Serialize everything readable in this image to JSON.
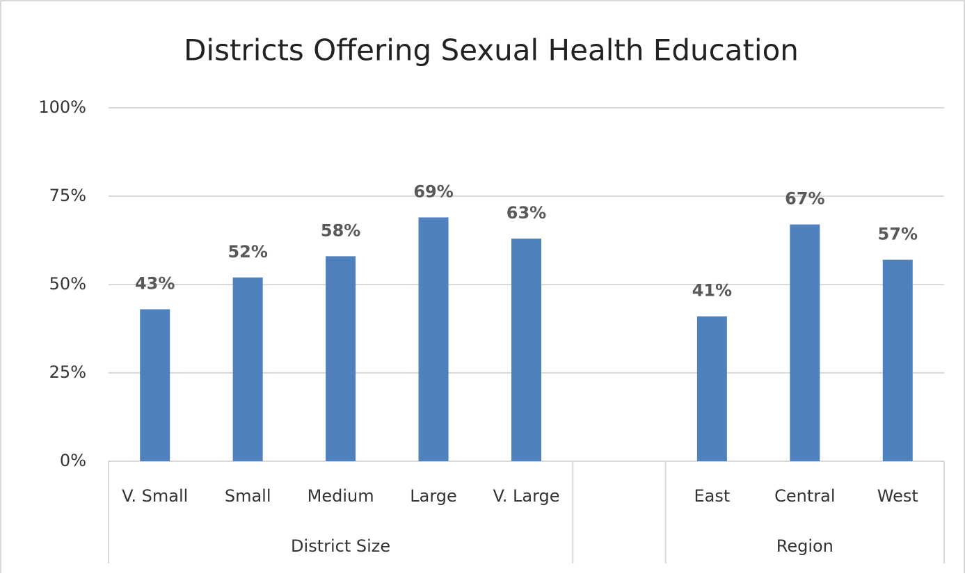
{
  "chart_data": {
    "type": "bar",
    "title": "Districts Offering Sexual Health Education",
    "categories": [
      "V. Small",
      "Small",
      "Medium",
      "Large",
      "V. Large",
      null,
      "East",
      "Central",
      "West"
    ],
    "values": [
      43,
      52,
      58,
      69,
      63,
      null,
      41,
      67,
      57
    ],
    "value_labels": [
      "43%",
      "52%",
      "58%",
      "69%",
      "63%",
      null,
      "41%",
      "67%",
      "57%"
    ],
    "groups": [
      {
        "name": "District Size",
        "start": 0,
        "end": 4
      },
      {
        "name": "Region",
        "start": 6,
        "end": 8
      }
    ],
    "color": "#4f81bd",
    "ylim": [
      0,
      100
    ],
    "yticks": [
      {
        "value": 0,
        "label": "0%"
      },
      {
        "value": 25,
        "label": "25%"
      },
      {
        "value": 50,
        "label": "50%"
      },
      {
        "value": 75,
        "label": "75%"
      },
      {
        "value": 100,
        "label": "100%"
      }
    ],
    "grid": true
  }
}
